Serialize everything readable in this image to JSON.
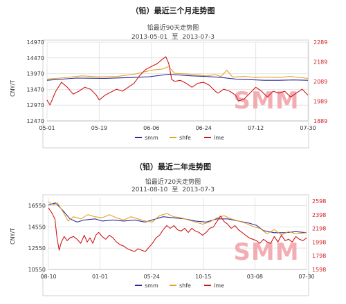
{
  "colors": {
    "smm": "#2a2aa0",
    "shfe": "#e8a020",
    "lme": "#d01818",
    "right_axis": "#d02020",
    "grid": "#e4e4e4",
    "frame": "#d0d0d0"
  },
  "chart_data": [
    {
      "type": "line",
      "title": "（铅）最近三个月走势图",
      "subtitle": "铅最近90天走势图",
      "date_range": {
        "start": "2013-05-01",
        "sep": "至",
        "end": "2013-07-3"
      },
      "ylabel": "CNY/T",
      "y_ticks": [
        "12470",
        "12970",
        "13470",
        "13970",
        "14470",
        "14970"
      ],
      "ylim": [
        12470,
        14970
      ],
      "y2_ticks": [
        "1889",
        "1989",
        "2089",
        "2189",
        "2289"
      ],
      "y2lim": [
        1889,
        2289
      ],
      "x_ticks": [
        "05-01",
        "05-19",
        "06-06",
        "06-24",
        "07-12",
        "07-30"
      ],
      "x_count": 91,
      "grid": true,
      "legend": [
        "smm",
        "shfe",
        "lme"
      ],
      "watermark": "SMM",
      "series": [
        {
          "name": "smm",
          "axis": "left",
          "points": [
            [
              0,
              13760
            ],
            [
              10,
              13830
            ],
            [
              20,
              13820
            ],
            [
              30,
              13850
            ],
            [
              35,
              13870
            ],
            [
              42,
              13950
            ],
            [
              50,
              13900
            ],
            [
              55,
              13880
            ],
            [
              60,
              13850
            ],
            [
              65,
              13800
            ],
            [
              70,
              13780
            ],
            [
              75,
              13760
            ],
            [
              80,
              13760
            ],
            [
              85,
              13770
            ],
            [
              90,
              13760
            ]
          ]
        },
        {
          "name": "shfe",
          "axis": "left",
          "points": [
            [
              0,
              13800
            ],
            [
              6,
              13840
            ],
            [
              12,
              13900
            ],
            [
              18,
              13870
            ],
            [
              24,
              13880
            ],
            [
              30,
              13950
            ],
            [
              36,
              14080
            ],
            [
              40,
              14120
            ],
            [
              42,
              14200
            ],
            [
              44,
              13980
            ],
            [
              48,
              13960
            ],
            [
              52,
              13930
            ],
            [
              55,
              13900
            ],
            [
              58,
              13940
            ],
            [
              60,
              13880
            ],
            [
              62,
              14080
            ],
            [
              64,
              13860
            ],
            [
              68,
              13880
            ],
            [
              72,
              13850
            ],
            [
              76,
              13860
            ],
            [
              80,
              13850
            ],
            [
              84,
              13880
            ],
            [
              88,
              13840
            ],
            [
              90,
              13820
            ]
          ]
        },
        {
          "name": "lme",
          "axis": "right",
          "points": [
            [
              0,
              1995
            ],
            [
              1,
              1970
            ],
            [
              3,
              2040
            ],
            [
              5,
              2085
            ],
            [
              7,
              2060
            ],
            [
              9,
              2025
            ],
            [
              11,
              2040
            ],
            [
              13,
              2060
            ],
            [
              15,
              2050
            ],
            [
              17,
              2020
            ],
            [
              18,
              1995
            ],
            [
              20,
              2020
            ],
            [
              22,
              2035
            ],
            [
              24,
              2050
            ],
            [
              26,
              2040
            ],
            [
              28,
              2060
            ],
            [
              30,
              2080
            ],
            [
              32,
              2120
            ],
            [
              34,
              2150
            ],
            [
              36,
              2165
            ],
            [
              38,
              2180
            ],
            [
              40,
              2205
            ],
            [
              41,
              2215
            ],
            [
              42,
              2180
            ],
            [
              43,
              2100
            ],
            [
              44,
              2090
            ],
            [
              46,
              2095
            ],
            [
              48,
              2080
            ],
            [
              50,
              2060
            ],
            [
              52,
              2080
            ],
            [
              54,
              2085
            ],
            [
              56,
              2070
            ],
            [
              58,
              2040
            ],
            [
              59,
              2030
            ],
            [
              61,
              2050
            ],
            [
              63,
              2040
            ],
            [
              65,
              2020
            ],
            [
              66,
              1990
            ],
            [
              68,
              2000
            ],
            [
              70,
              2030
            ],
            [
              72,
              2060
            ],
            [
              74,
              2040
            ],
            [
              76,
              2010
            ],
            [
              78,
              2040
            ],
            [
              80,
              2030
            ],
            [
              82,
              2040
            ],
            [
              84,
              2010
            ],
            [
              86,
              2030
            ],
            [
              88,
              2050
            ],
            [
              90,
              2020
            ]
          ]
        }
      ]
    },
    {
      "type": "line",
      "title": "（铅）最近二年走势图",
      "subtitle": "铅最近720天走势图",
      "date_range": {
        "start": "2011-08-10",
        "sep": "至",
        "end": "2013-07-3"
      },
      "ylabel": "CNY/T",
      "y_ticks": [
        "10550",
        "12550",
        "14550",
        "16550"
      ],
      "ylim": [
        10550,
        17300
      ],
      "y2_ticks": [
        "1598",
        "1798",
        "1998",
        "2198",
        "2398",
        "2598"
      ],
      "y2lim": [
        1598,
        2650
      ],
      "x_ticks": [
        "08-10",
        "01-01",
        "05-24",
        "10-15",
        "03-08",
        "07-30"
      ],
      "x_count": 721,
      "grid": true,
      "legend": [
        "smm",
        "shfe",
        "lme"
      ],
      "watermark": "SMM",
      "series": [
        {
          "name": "smm",
          "axis": "left",
          "points": [
            [
              0,
              16600
            ],
            [
              20,
              16800
            ],
            [
              40,
              16100
            ],
            [
              60,
              15300
            ],
            [
              80,
              15000
            ],
            [
              100,
              15200
            ],
            [
              130,
              15300
            ],
            [
              150,
              15100
            ],
            [
              180,
              15200
            ],
            [
              210,
              15100
            ],
            [
              240,
              15200
            ],
            [
              270,
              15000
            ],
            [
              300,
              15300
            ],
            [
              320,
              15500
            ],
            [
              350,
              15400
            ],
            [
              380,
              15300
            ],
            [
              410,
              15100
            ],
            [
              440,
              15000
            ],
            [
              470,
              15300
            ],
            [
              500,
              15300
            ],
            [
              530,
              15100
            ],
            [
              560,
              14900
            ],
            [
              580,
              14700
            ],
            [
              600,
              14200
            ],
            [
              630,
              14000
            ],
            [
              660,
              14000
            ],
            [
              690,
              14100
            ],
            [
              720,
              14000
            ]
          ]
        },
        {
          "name": "shfe",
          "axis": "left",
          "points": [
            [
              0,
              16900
            ],
            [
              15,
              16600
            ],
            [
              25,
              16800
            ],
            [
              40,
              16000
            ],
            [
              55,
              15100
            ],
            [
              70,
              15500
            ],
            [
              90,
              15300
            ],
            [
              110,
              15700
            ],
            [
              130,
              15500
            ],
            [
              150,
              15400
            ],
            [
              170,
              15700
            ],
            [
              190,
              15400
            ],
            [
              210,
              15200
            ],
            [
              230,
              15500
            ],
            [
              250,
              15300
            ],
            [
              270,
              15100
            ],
            [
              290,
              15000
            ],
            [
              310,
              15600
            ],
            [
              330,
              15800
            ],
            [
              350,
              15500
            ],
            [
              370,
              15400
            ],
            [
              390,
              15200
            ],
            [
              410,
              15000
            ],
            [
              430,
              14800
            ],
            [
              450,
              15000
            ],
            [
              470,
              15400
            ],
            [
              490,
              15600
            ],
            [
              510,
              15300
            ],
            [
              530,
              15100
            ],
            [
              550,
              14900
            ],
            [
              570,
              14600
            ],
            [
              590,
              14400
            ],
            [
              610,
              13900
            ],
            [
              630,
              14300
            ],
            [
              650,
              13800
            ],
            [
              670,
              14100
            ],
            [
              690,
              13900
            ],
            [
              720,
              14000
            ]
          ]
        },
        {
          "name": "lme",
          "axis": "right",
          "points": [
            [
              0,
              2500
            ],
            [
              10,
              2420
            ],
            [
              18,
              2340
            ],
            [
              24,
              2060
            ],
            [
              30,
              1880
            ],
            [
              36,
              2000
            ],
            [
              44,
              2080
            ],
            [
              52,
              2020
            ],
            [
              60,
              2060
            ],
            [
              70,
              2080
            ],
            [
              80,
              2040
            ],
            [
              90,
              1980
            ],
            [
              100,
              2100
            ],
            [
              108,
              2000
            ],
            [
              116,
              2060
            ],
            [
              124,
              1980
            ],
            [
              132,
              2100
            ],
            [
              140,
              2140
            ],
            [
              150,
              2080
            ],
            [
              160,
              2040
            ],
            [
              170,
              2100
            ],
            [
              180,
              2060
            ],
            [
              190,
              2000
            ],
            [
              200,
              1960
            ],
            [
              210,
              1940
            ],
            [
              220,
              1900
            ],
            [
              230,
              1880
            ],
            [
              240,
              1860
            ],
            [
              250,
              1900
            ],
            [
              260,
              1880
            ],
            [
              270,
              1860
            ],
            [
              280,
              1920
            ],
            [
              290,
              1980
            ],
            [
              300,
              2060
            ],
            [
              310,
              2100
            ],
            [
              320,
              2180
            ],
            [
              330,
              2240
            ],
            [
              340,
              2200
            ],
            [
              350,
              2240
            ],
            [
              360,
              2180
            ],
            [
              370,
              2160
            ],
            [
              380,
              2200
            ],
            [
              390,
              2140
            ],
            [
              400,
              2200
            ],
            [
              410,
              2160
            ],
            [
              420,
              2140
            ],
            [
              430,
              2100
            ],
            [
              440,
              2140
            ],
            [
              450,
              2200
            ],
            [
              460,
              2220
            ],
            [
              470,
              2300
            ],
            [
              480,
              2380
            ],
            [
              490,
              2300
            ],
            [
              500,
              2260
            ],
            [
              510,
              2200
            ],
            [
              520,
              2240
            ],
            [
              530,
              2180
            ],
            [
              540,
              2140
            ],
            [
              550,
              2100
            ],
            [
              560,
              2060
            ],
            [
              570,
              2040
            ],
            [
              580,
              2020
            ],
            [
              590,
              1980
            ],
            [
              600,
              2040
            ],
            [
              610,
              2000
            ],
            [
              620,
              1980
            ],
            [
              630,
              2080
            ],
            [
              640,
              2000
            ],
            [
              650,
              2100
            ],
            [
              660,
              2020
            ],
            [
              670,
              2040
            ],
            [
              680,
              2000
            ],
            [
              690,
              2080
            ],
            [
              700,
              2040
            ],
            [
              710,
              2020
            ],
            [
              720,
              2060
            ]
          ]
        }
      ]
    }
  ]
}
